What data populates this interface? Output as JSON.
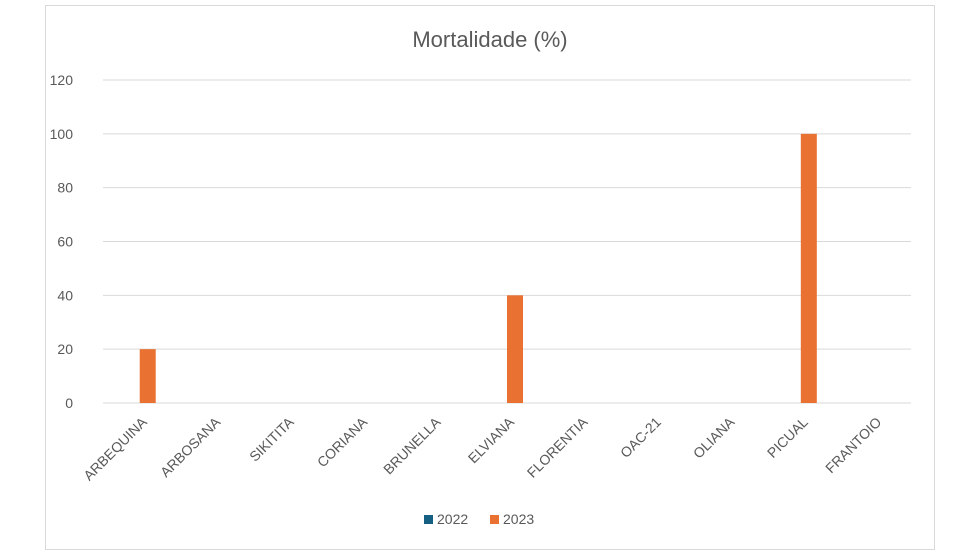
{
  "chart_data": {
    "type": "bar",
    "title": "Mortalidade (%)",
    "xlabel": "",
    "ylabel": "",
    "categories": [
      "ARBEQUINA",
      "ARBOSANA",
      "SIKITITA",
      "CORIANA",
      "BRUNELLA",
      "ELVIANA",
      "FLORENTIA",
      "OAC-21",
      "OLIANA",
      "PICUAL",
      "FRANTOIO"
    ],
    "series": [
      {
        "name": "2022",
        "color": "#156082",
        "values": [
          0,
          0,
          0,
          0,
          0,
          0,
          0,
          0,
          0,
          0,
          0
        ]
      },
      {
        "name": "2023",
        "color": "#E97132",
        "values": [
          20,
          0,
          0,
          0,
          0,
          40,
          0,
          0,
          0,
          100,
          0
        ]
      }
    ],
    "ylim": [
      0,
      120
    ],
    "yticks": [
      0,
      20,
      40,
      60,
      80,
      100,
      120
    ],
    "grid": true,
    "legend_position": "bottom"
  }
}
